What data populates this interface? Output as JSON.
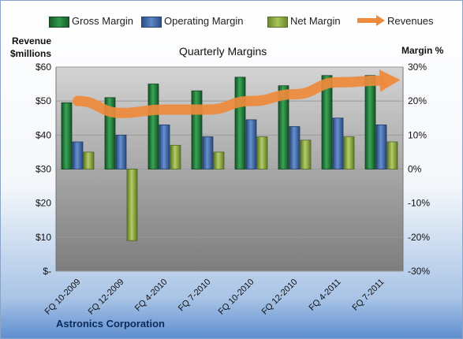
{
  "chart_data": {
    "type": "bar",
    "title": "Quarterly Margins",
    "left_axis_label_line1": "Revenue",
    "left_axis_label_line2": "$millions",
    "right_axis_label": "Margin %",
    "categories": [
      "FQ 10-2009",
      "FQ 12-2009",
      "FQ 4-2010",
      "FQ 7-2010",
      "FQ 10-2010",
      "FQ 12-2010",
      "FQ 4-2011",
      "FQ 7-2011"
    ],
    "series": [
      {
        "name": "Gross Margin",
        "axis": "right",
        "values": [
          19.5,
          21.0,
          25.0,
          23.0,
          27.0,
          24.5,
          27.5,
          27.5
        ]
      },
      {
        "name": "Operating Margin",
        "axis": "right",
        "values": [
          8.0,
          10.0,
          13.0,
          9.5,
          14.5,
          12.5,
          15.0,
          13.0
        ]
      },
      {
        "name": "Net Margin",
        "axis": "right",
        "values": [
          5.0,
          -21.0,
          7.0,
          5.0,
          9.5,
          8.5,
          9.5,
          8.0
        ]
      },
      {
        "name": "Revenues",
        "axis": "left",
        "type": "line",
        "values": [
          50.0,
          46.5,
          47.5,
          47.5,
          50.0,
          52.0,
          55.5,
          56.0
        ]
      }
    ],
    "y_left": {
      "ylim": [
        0,
        60
      ],
      "ticks": [
        "$-",
        "$10",
        "$20",
        "$30",
        "$40",
        "$50",
        "$60"
      ]
    },
    "y_right": {
      "ylim": [
        -30,
        30
      ],
      "ticks": [
        "-30%",
        "-20%",
        "-10%",
        "0%",
        "10%",
        "20%",
        "30%"
      ]
    },
    "grid": true,
    "legend_position": "top",
    "colors": {
      "gross": "#2a8a44",
      "operating": "#4f78b8",
      "net": "#94b24a",
      "revenues": "#ee8a3c",
      "plot_bg_top": "#d3d3d3",
      "plot_bg_bottom": "#7d7d7d"
    }
  },
  "footer": {
    "company": "Astronics Corporation"
  }
}
